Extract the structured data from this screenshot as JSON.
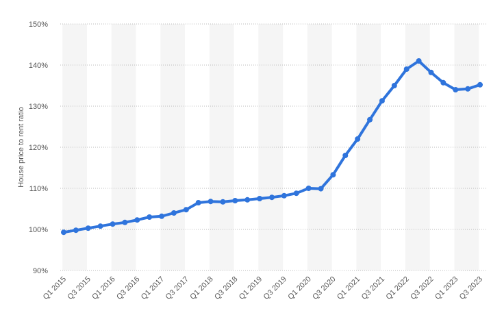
{
  "chart_data": {
    "type": "line",
    "y_label": "House price to rent ratio",
    "categories": [
      "Q1 2015",
      null,
      "Q3 2015",
      null,
      "Q1 2016",
      null,
      "Q3 2016",
      null,
      "Q1 2017",
      null,
      "Q3 2017",
      null,
      "Q1 2018",
      null,
      "Q3 2018",
      null,
      "Q1 2019",
      null,
      "Q3 2019",
      null,
      "Q1 2020",
      null,
      "Q3 2020",
      null,
      "Q1 2021",
      null,
      "Q3 2021",
      null,
      "Q1 2022",
      null,
      "Q3 2022",
      null,
      "Q1 2023",
      null,
      "Q3 2023"
    ],
    "series": [
      {
        "name": "House price to rent ratio",
        "color": "#2f74dc",
        "values": [
          99.3,
          99.8,
          100.3,
          100.8,
          101.3,
          101.7,
          102.3,
          103.0,
          103.2,
          104.0,
          104.8,
          106.5,
          106.8,
          106.7,
          107.0,
          107.2,
          107.5,
          107.8,
          108.2,
          108.8,
          110.0,
          109.9,
          113.3,
          118.0,
          122.0,
          126.7,
          131.3,
          135.0,
          139.0,
          141.0,
          138.2,
          135.7,
          134.0,
          134.2,
          135.2
        ]
      }
    ],
    "ylim": [
      90,
      150
    ],
    "yticks": [
      {
        "value": 90,
        "label": "90%"
      },
      {
        "value": 100,
        "label": "100%"
      },
      {
        "value": 110,
        "label": "110%"
      },
      {
        "value": 120,
        "label": "120%"
      },
      {
        "value": 130,
        "label": "130%"
      },
      {
        "value": 140,
        "label": "140%"
      },
      {
        "value": 150,
        "label": "150%"
      }
    ],
    "grid": true
  }
}
